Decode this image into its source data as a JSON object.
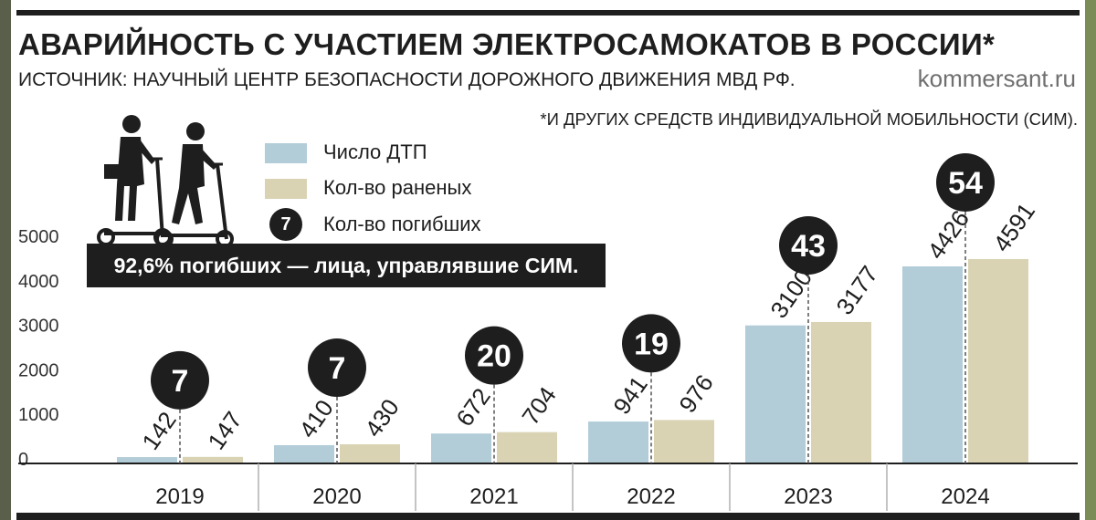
{
  "header": {
    "title": "АВАРИЙНОСТЬ С УЧАСТИЕМ ЭЛЕКТРОСАМОКАТОВ В РОССИИ*",
    "source": "ИСТОЧНИК: НАУЧНЫЙ ЦЕНТР БЕЗОПАСНОСТИ ДОРОЖНОГО ДВИЖЕНИЯ МВД РФ.",
    "brand": "kommersant.ru",
    "footnote": "*И ДРУГИХ СРЕДСТВ ИНДИВИДУАЛЬНОЙ МОБИЛЬНОСТИ (СИМ)."
  },
  "legend": {
    "accidents": "Число ДТП",
    "injured": "Кол-во раненых",
    "deaths_marker": "7",
    "deaths": "Кол-во погибших"
  },
  "note": "92,6% погибших — лица, управлявшие СИМ.",
  "colors": {
    "accidents": "#b2ccd8",
    "injured": "#d9d3b4",
    "deaths": "#1e1e1e"
  },
  "chart_data": {
    "type": "bar",
    "categories": [
      "2019",
      "2020",
      "2021",
      "2022",
      "2023",
      "2024"
    ],
    "series": [
      {
        "name": "Число ДТП",
        "values": [
          142,
          410,
          672,
          941,
          3100,
          4426
        ]
      },
      {
        "name": "Кол-во раненых",
        "values": [
          147,
          430,
          704,
          976,
          3177,
          4591
        ]
      },
      {
        "name": "Кол-во погибших",
        "values": [
          7,
          7,
          20,
          19,
          43,
          54
        ]
      }
    ],
    "yticks": [
      "0",
      "1000",
      "2000",
      "3000",
      "4000",
      "5000"
    ],
    "ylim": [
      0,
      5000
    ],
    "grid": false,
    "legend_position": "top-left"
  }
}
